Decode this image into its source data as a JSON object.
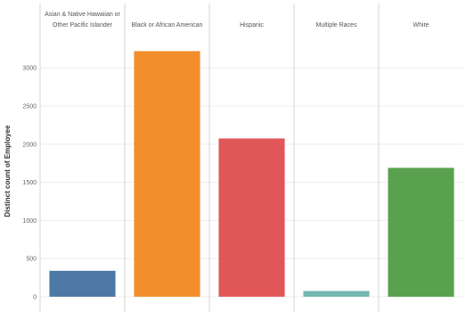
{
  "chart_data": {
    "type": "bar",
    "categories": [
      [
        "Asian & Native Hawaiian or",
        "Other Pacific Islander"
      ],
      [
        "Black or African American"
      ],
      [
        "Hispanic"
      ],
      [
        "Multiple Races"
      ],
      [
        "White"
      ]
    ],
    "values": [
      340,
      3220,
      2075,
      75,
      1690
    ],
    "colors": [
      "#4e79a7",
      "#f28e2b",
      "#e15759",
      "#76b7b2",
      "#59a14f"
    ],
    "ylabel": "Distinct count of Employee",
    "ylim": [
      0,
      3400
    ],
    "yticks": [
      0,
      500,
      1000,
      1500,
      2000,
      2500,
      3000
    ],
    "grid": true,
    "legend": "none"
  }
}
